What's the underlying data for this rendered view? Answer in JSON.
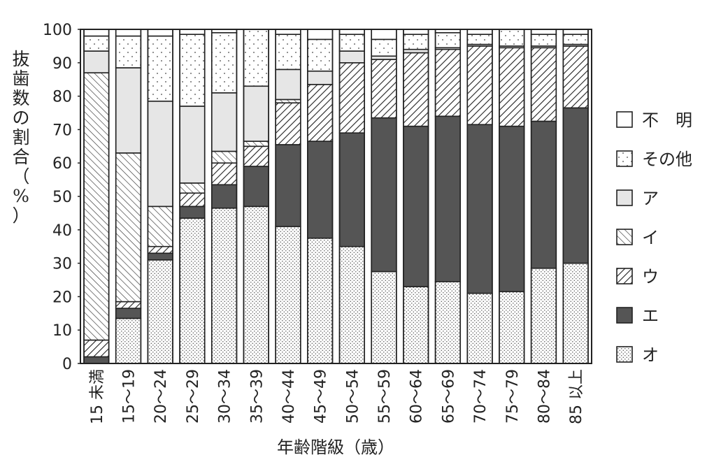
{
  "chart_data": {
    "type": "bar",
    "stacked": true,
    "ylabel": "抜歯数の割合（%）",
    "xlabel": "年齢階級（歳）",
    "ylim": [
      0,
      100
    ],
    "yticks": [
      "0",
      "10",
      "20",
      "30",
      "40",
      "50",
      "60",
      "70",
      "80",
      "90",
      "100"
    ],
    "categories": [
      "15 未満",
      "15～19",
      "20～24",
      "25～29",
      "30～34",
      "35～39",
      "40～44",
      "45～49",
      "50～54",
      "55～59",
      "60～64",
      "65～69",
      "70～74",
      "75～79",
      "80～84",
      "85 以上"
    ],
    "series": [
      {
        "name": "オ",
        "pattern": "dots-fine",
        "values": [
          0,
          13.5,
          31,
          43.5,
          46.5,
          47,
          41,
          37.5,
          35,
          27.5,
          23,
          24.5,
          21,
          21.5,
          28.5,
          30
        ]
      },
      {
        "name": "エ",
        "pattern": "solid-dark",
        "values": [
          2,
          3,
          2,
          3.5,
          7,
          12,
          24.5,
          29,
          34,
          46,
          48,
          49.5,
          50.5,
          49.5,
          44,
          46.5
        ]
      },
      {
        "name": "ウ",
        "pattern": "hatch-slash",
        "values": [
          5,
          2,
          2,
          4,
          6.5,
          6,
          12.5,
          17,
          21,
          17.5,
          22,
          20,
          23.5,
          23.5,
          22,
          18.5
        ]
      },
      {
        "name": "イ",
        "pattern": "hatch-backslash",
        "values": [
          80,
          44.5,
          12,
          3,
          3.5,
          1.5,
          1,
          0,
          0,
          0,
          0,
          0,
          0,
          0,
          0,
          0
        ]
      },
      {
        "name": "ア",
        "pattern": "light-gray",
        "values": [
          6.5,
          25.5,
          31.5,
          23,
          17.5,
          16.5,
          9,
          4,
          3.5,
          1,
          1,
          0.5,
          0.5,
          0.5,
          0.5,
          0.5
        ]
      },
      {
        "name": "その他",
        "pattern": "dots-sparse",
        "values": [
          4.5,
          9.5,
          19.5,
          21.5,
          18,
          17,
          10.5,
          9.5,
          5,
          5,
          4.5,
          4.5,
          3,
          5,
          3.5,
          3
        ]
      },
      {
        "name": "不明",
        "pattern": "white",
        "values": [
          2,
          2,
          2,
          1.5,
          1,
          0,
          1.5,
          3,
          1.5,
          3,
          1.5,
          1,
          1.5,
          0,
          1.5,
          1.5
        ]
      }
    ],
    "legend": {
      "order": [
        "不明",
        "その他",
        "ア",
        "イ",
        "ウ",
        "エ",
        "オ"
      ],
      "labels": [
        "不　明",
        "その他",
        "ア",
        "イ",
        "ウ",
        "エ",
        "オ"
      ],
      "position": "right"
    }
  }
}
